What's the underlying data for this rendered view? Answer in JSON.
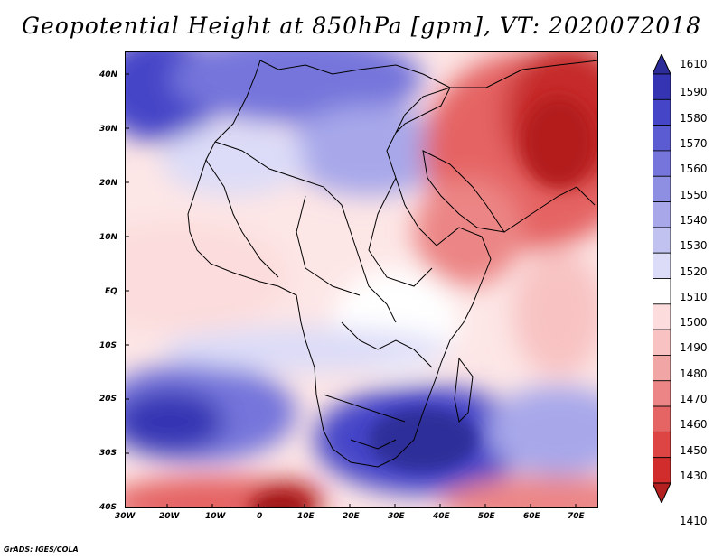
{
  "title": "Geopotential Height at 850hPa [gpm], VT: 2020072018",
  "credit": "GrADS: IGES/COLA",
  "axes": {
    "lat_labels": [
      "40N",
      "30N",
      "20N",
      "10N",
      "EQ",
      "10S",
      "20S",
      "30S",
      "40S"
    ],
    "lon_labels": [
      "30W",
      "20W",
      "10W",
      "0",
      "10E",
      "20E",
      "30E",
      "40E",
      "50E",
      "60E",
      "70E"
    ]
  },
  "colorbar": {
    "levels": [
      "1610",
      "1590",
      "1580",
      "1570",
      "1560",
      "1550",
      "1540",
      "1530",
      "1520",
      "1510",
      "1500",
      "1490",
      "1480",
      "1470",
      "1460",
      "1450",
      "1430",
      "1410"
    ],
    "colors": [
      "#2d2d9a",
      "#3535b4",
      "#4545c8",
      "#5c5cd2",
      "#7575db",
      "#8e8ee2",
      "#a7a7ea",
      "#c2c2f1",
      "#dcdcf8",
      "#ffffff",
      "#fcdcdc",
      "#f8c2c2",
      "#f2a5a5",
      "#ec8585",
      "#e56464",
      "#dd4444",
      "#d12d2d",
      "#b41f1f"
    ]
  }
}
